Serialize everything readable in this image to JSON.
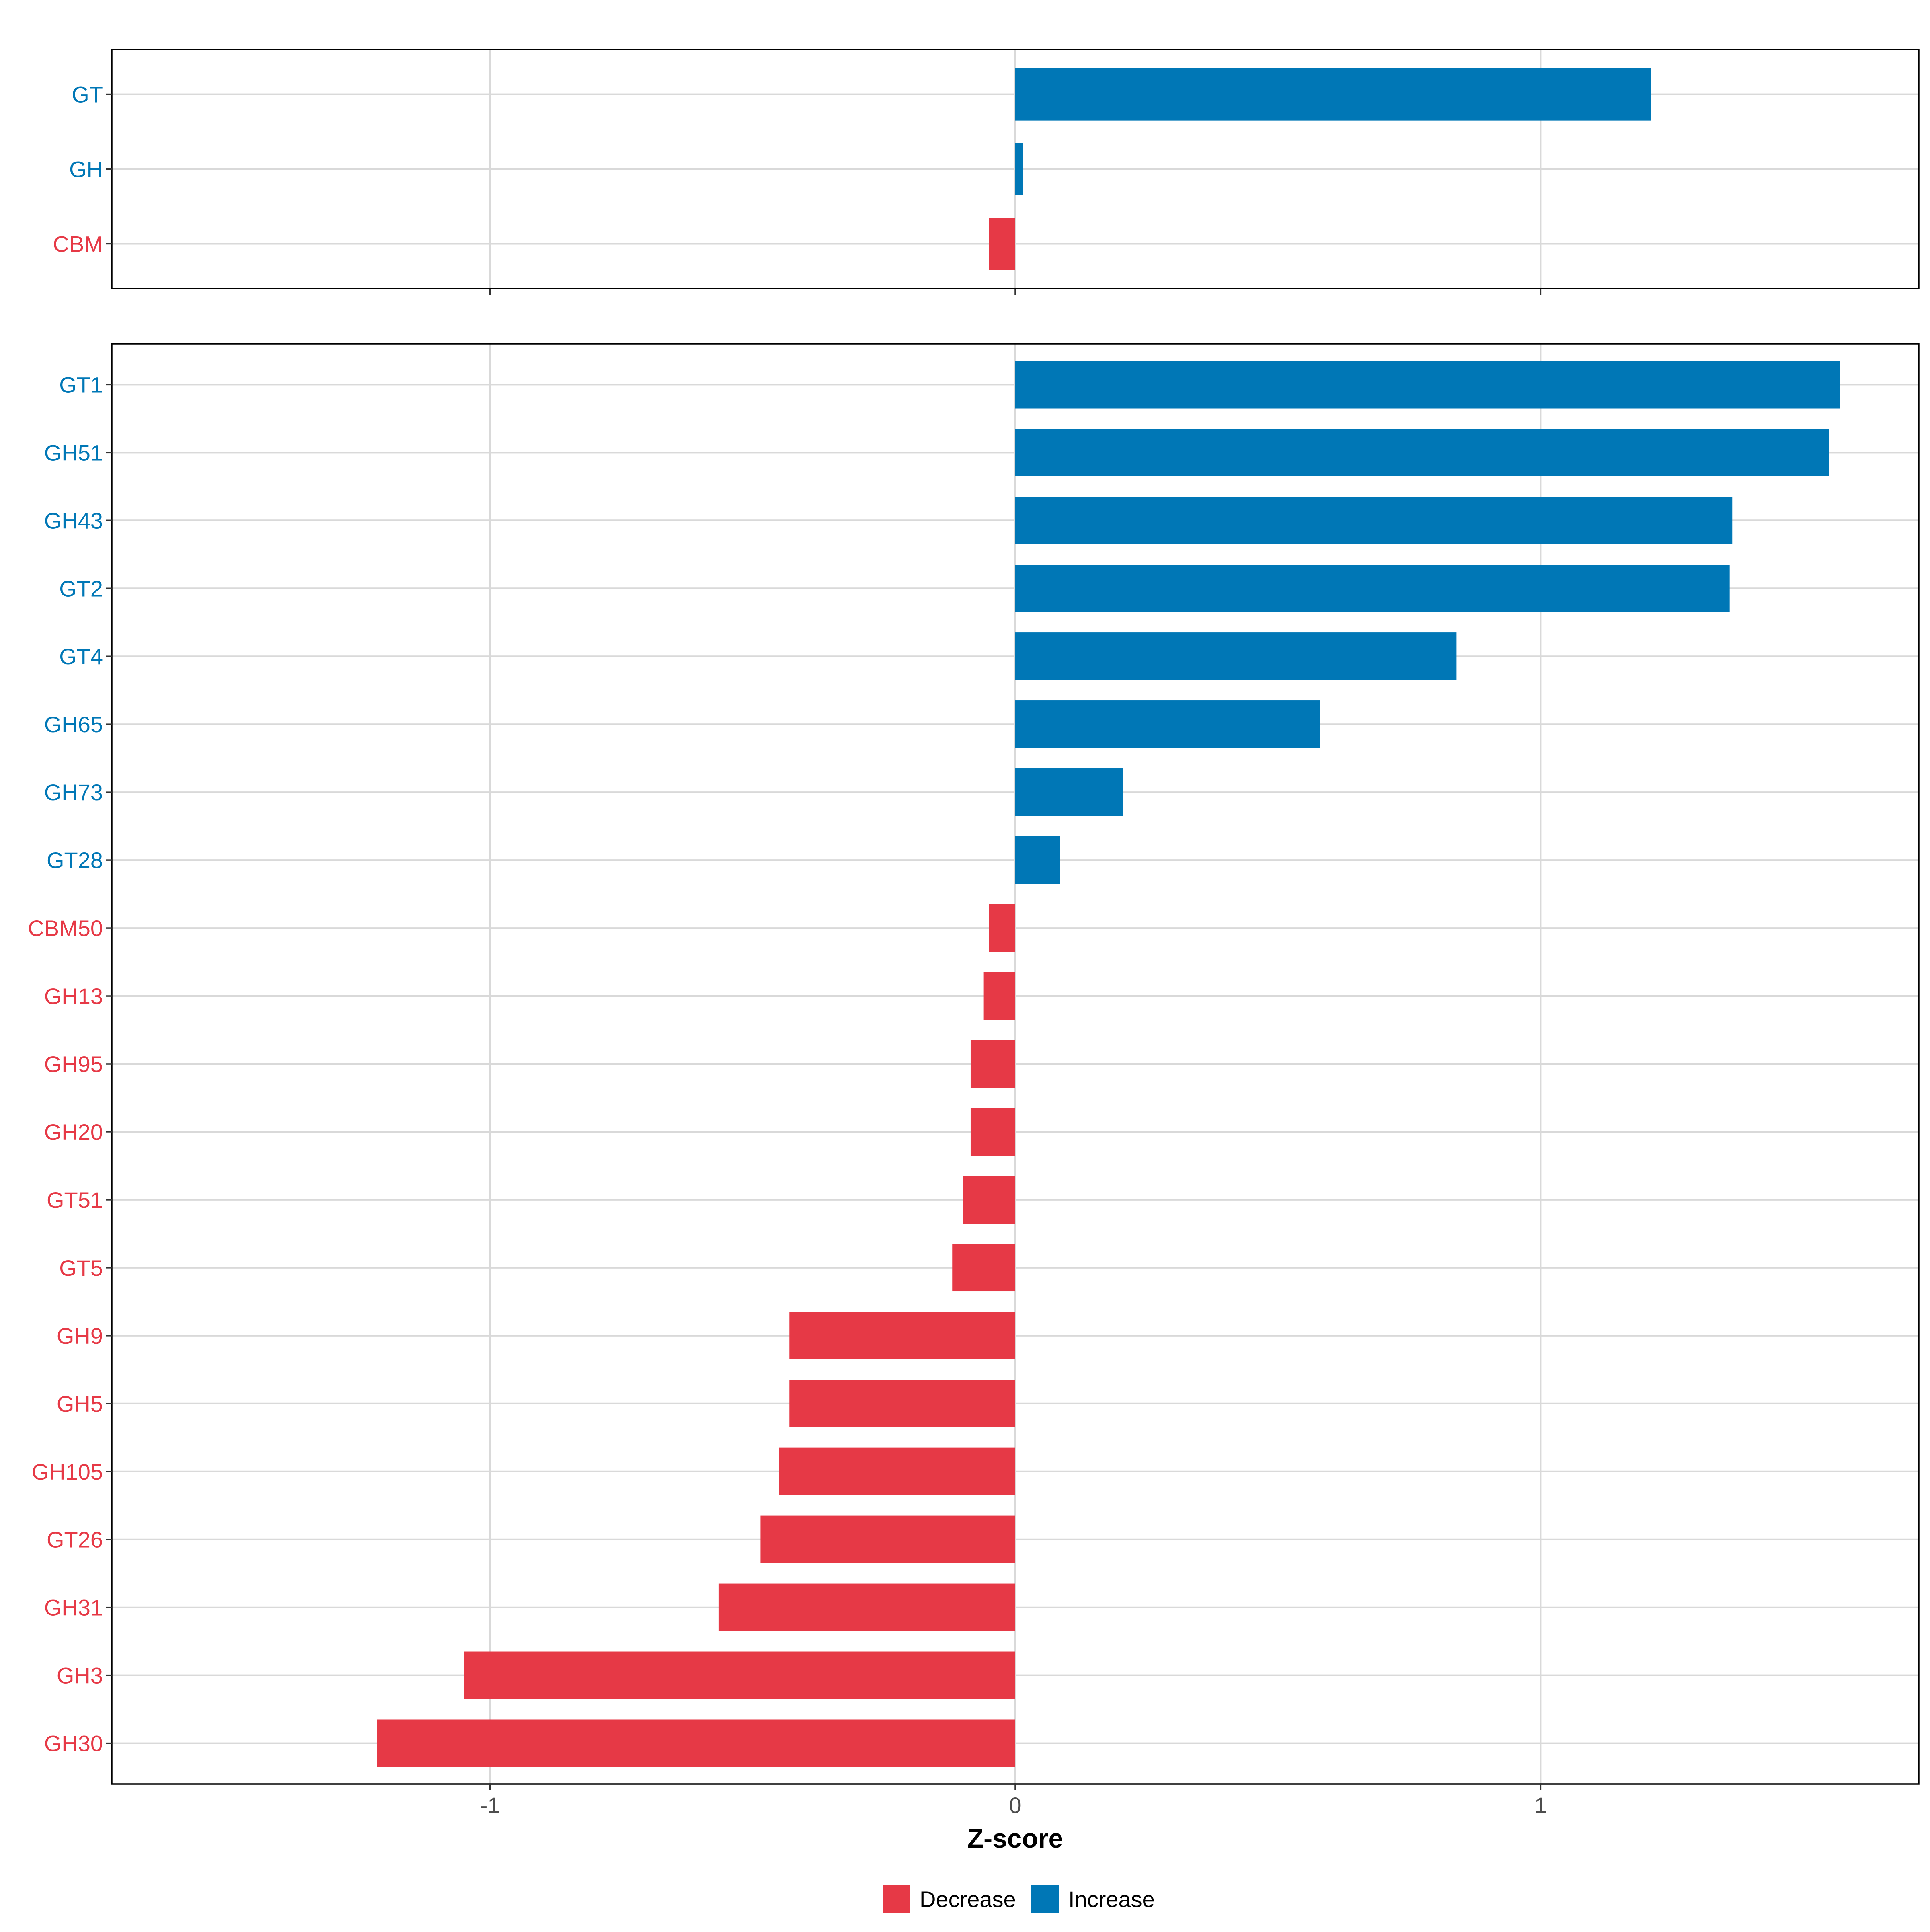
{
  "colors": {
    "decrease": "#E63946",
    "increase": "#0077B6",
    "grid": "#D9D9D9",
    "frame": "#000000"
  },
  "chart_data": [
    {
      "type": "bar",
      "orientation": "horizontal",
      "panel": "top",
      "categories": [
        "GT",
        "GH",
        "CBM"
      ],
      "values": [
        1.21,
        0.015,
        -0.05
      ],
      "xlim": [
        -1.72,
        1.72
      ],
      "xticks": [
        -1,
        0,
        1
      ],
      "grid": true
    },
    {
      "type": "bar",
      "orientation": "horizontal",
      "panel": "bottom",
      "categories": [
        "GT1",
        "GH51",
        "GH43",
        "GT2",
        "GT4",
        "GH65",
        "GH73",
        "GT28",
        "CBM50",
        "GH13",
        "GH95",
        "GH20",
        "GT51",
        "GT5",
        "GH9",
        "GH5",
        "GH105",
        "GT26",
        "GH31",
        "GH3",
        "GH30"
      ],
      "values": [
        1.57,
        1.55,
        1.365,
        1.36,
        0.84,
        0.58,
        0.205,
        0.085,
        -0.05,
        -0.06,
        -0.085,
        -0.085,
        -0.1,
        -0.12,
        -0.43,
        -0.43,
        -0.45,
        -0.485,
        -0.565,
        -1.05,
        -1.215
      ],
      "xlim": [
        -1.72,
        1.72
      ],
      "xticks": [
        -1,
        0,
        1
      ],
      "xtick_labels": [
        "-1",
        "0",
        "1"
      ],
      "xlabel": "Z-score",
      "grid": true
    }
  ],
  "legend": {
    "position": "bottom",
    "items": [
      {
        "label": "Decrease",
        "color_key": "decrease"
      },
      {
        "label": "Increase",
        "color_key": "increase"
      }
    ]
  }
}
